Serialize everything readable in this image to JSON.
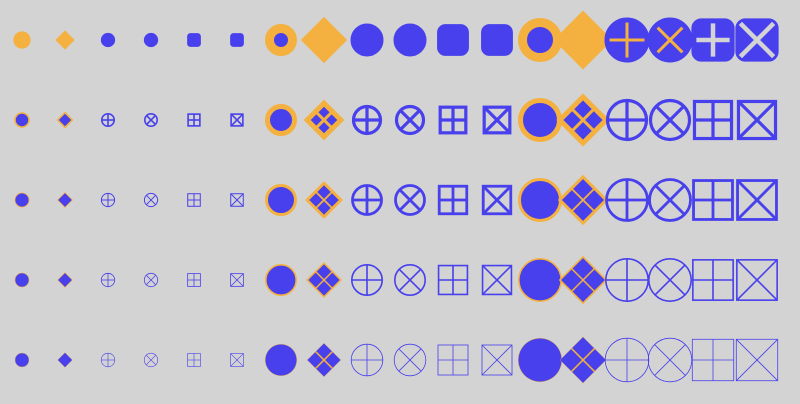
{
  "colors": {
    "background": "#d3d3d3",
    "orange": "#f4b13f",
    "blue": "#4840ec"
  },
  "marker_types": [
    "circle",
    "diamond",
    "circle-plus",
    "circle-x",
    "square-plus",
    "square-x"
  ],
  "size_steps": [
    "small",
    "medium",
    "large"
  ],
  "weight_rows": [
    "heaviest",
    "heavy",
    "medium",
    "light",
    "lightest"
  ]
}
